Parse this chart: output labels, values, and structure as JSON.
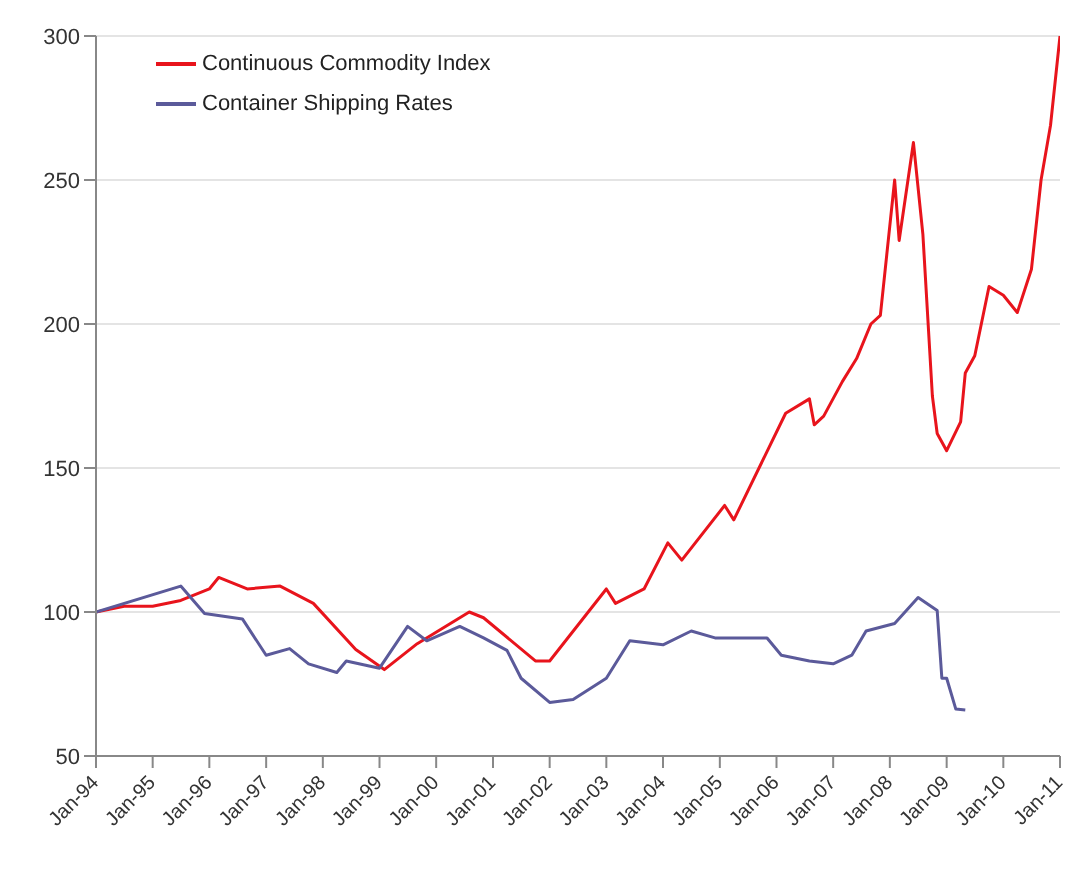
{
  "chart_data": {
    "type": "line",
    "legend": "top left",
    "grid": "y",
    "line_style": "solid",
    "marker": "none",
    "xlim": [
      "1994-01",
      "2011-01"
    ],
    "xticks": [
      {
        "value": "1994-01",
        "label": "Jan-94"
      },
      {
        "value": "1995-01",
        "label": "Jan-95"
      },
      {
        "value": "1996-01",
        "label": "Jan-96"
      },
      {
        "value": "1997-01",
        "label": "Jan-97"
      },
      {
        "value": "1998-01",
        "label": "Jan-98"
      },
      {
        "value": "1999-01",
        "label": "Jan-99"
      },
      {
        "value": "2000-01",
        "label": "Jan-00"
      },
      {
        "value": "2001-01",
        "label": "Jan-01"
      },
      {
        "value": "2002-01",
        "label": "Jan-02"
      },
      {
        "value": "2003-01",
        "label": "Jan-03"
      },
      {
        "value": "2004-01",
        "label": "Jan-04"
      },
      {
        "value": "2005-01",
        "label": "Jan-05"
      },
      {
        "value": "2006-01",
        "label": "Jan-06"
      },
      {
        "value": "2007-01",
        "label": "Jan-07"
      },
      {
        "value": "2008-01",
        "label": "Jan-08"
      },
      {
        "value": "2009-01",
        "label": "Jan-09"
      },
      {
        "value": "2010-01",
        "label": "Jan-10"
      },
      {
        "value": "2011-01",
        "label": "Jan-11"
      }
    ],
    "ylim": [
      50,
      300
    ],
    "yticks": [
      50,
      100,
      150,
      200,
      250,
      300
    ],
    "series": [
      {
        "name": "Continuous Commodity Index",
        "color": "#e8141c",
        "x": [
          "1994-01",
          "1994-07",
          "1995-01",
          "1995-07",
          "1996-01",
          "1996-03",
          "1996-09",
          "1997-04",
          "1997-11",
          "1998-08",
          "1999-02",
          "1999-09",
          "2000-08",
          "2000-11",
          "2001-10",
          "2002-01",
          "2003-01",
          "2003-03",
          "2003-09",
          "2004-02",
          "2004-05",
          "2005-02",
          "2005-04",
          "2006-03",
          "2006-08",
          "2006-09",
          "2006-11",
          "2007-03",
          "2007-06",
          "2007-09",
          "2007-11",
          "2008-02",
          "2008-03",
          "2008-06",
          "2008-08",
          "2008-10",
          "2008-11",
          "2009-01",
          "2009-04",
          "2009-05",
          "2009-07",
          "2009-10",
          "2010-01",
          "2010-04",
          "2010-07",
          "2010-09",
          "2010-11",
          "2011-01"
        ],
        "values": [
          100,
          102,
          102,
          104,
          108,
          112,
          108,
          109,
          103,
          87,
          80,
          89,
          100,
          98,
          83,
          83,
          108,
          103,
          108,
          124,
          118,
          137,
          132,
          169,
          174,
          165,
          168,
          180,
          188,
          200,
          203,
          250,
          229,
          263,
          231,
          175,
          162,
          156,
          166,
          183,
          189,
          213,
          210,
          204,
          219,
          250,
          269,
          300
        ]
      },
      {
        "name": "Container Shipping Rates",
        "color": "#5b5a9a",
        "x": [
          "1994-01",
          "1995-07",
          "1995-12",
          "1996-08",
          "1997-01",
          "1997-06",
          "1997-10",
          "1998-04",
          "1998-06",
          "1999-01",
          "1999-07",
          "1999-11",
          "2000-06",
          "2000-11",
          "2001-04",
          "2001-07",
          "2002-01",
          "2002-06",
          "2003-01",
          "2003-06",
          "2004-01",
          "2004-07",
          "2004-12",
          "2005-11",
          "2006-02",
          "2006-08",
          "2007-01",
          "2007-05",
          "2007-08",
          "2008-02",
          "2008-07",
          "2008-11",
          "2008-12",
          "2009-01",
          "2009-03",
          "2009-05"
        ],
        "values": [
          100,
          109,
          99.5,
          97.6,
          85,
          87.3,
          82,
          79,
          83,
          80.5,
          95,
          90,
          95,
          91,
          86.7,
          77,
          68.6,
          69.6,
          77,
          90,
          88.6,
          93.4,
          91,
          91,
          85,
          83,
          82,
          85,
          93.4,
          96,
          105,
          100.5,
          77,
          77,
          66.3,
          66
        ]
      }
    ]
  }
}
